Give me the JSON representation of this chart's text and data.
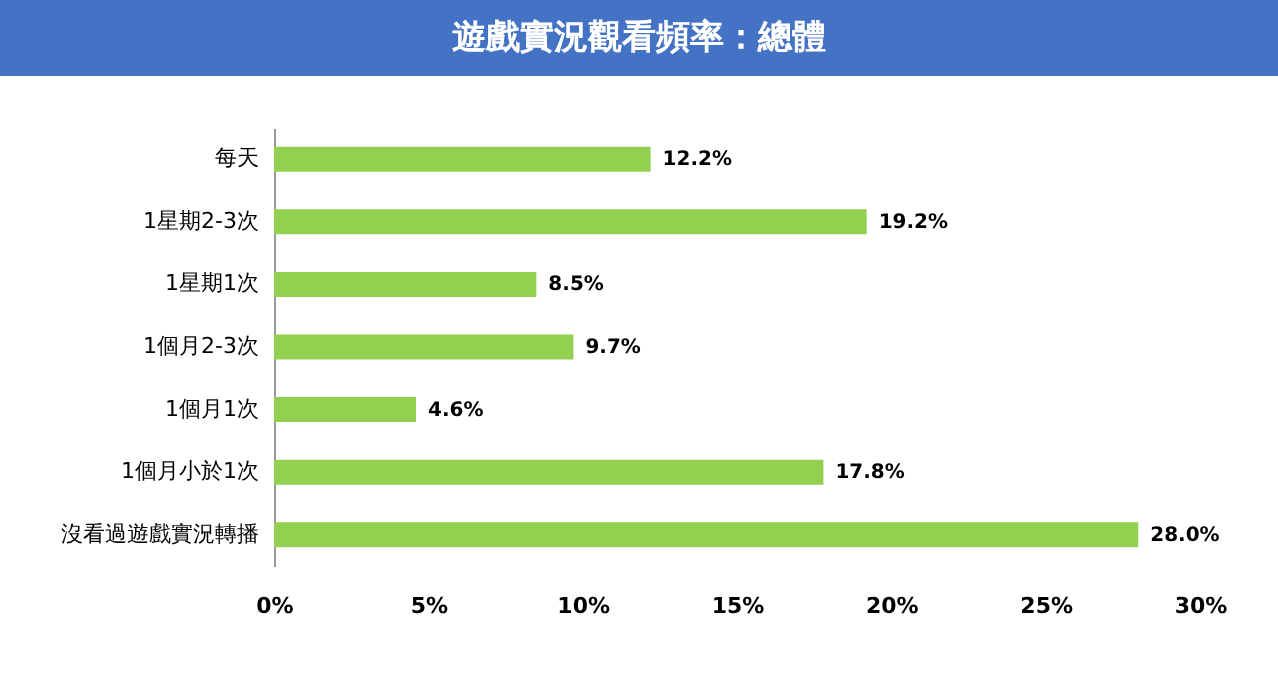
{
  "chart_data": {
    "type": "bar",
    "orientation": "horizontal",
    "title": "遊戲實況觀看頻率：總體",
    "categories": [
      "每天",
      "1星期2-3次",
      "1星期1次",
      "1個月2-3次",
      "1個月1次",
      "1個月小於1次",
      "沒看過遊戲實況轉播"
    ],
    "values": [
      12.2,
      19.2,
      8.5,
      9.7,
      4.6,
      17.8,
      28.0
    ],
    "value_labels": [
      "12.2%",
      "19.2%",
      "8.5%",
      "9.7%",
      "4.6%",
      "17.8%",
      "28.0%"
    ],
    "color": "#92d050",
    "xlim": [
      0,
      30
    ],
    "xticks": [
      {
        "value": 0,
        "label": "0%"
      },
      {
        "value": 5,
        "label": "5%"
      },
      {
        "value": 10,
        "label": "10%"
      },
      {
        "value": 15,
        "label": "15%"
      },
      {
        "value": 20,
        "label": "20%"
      },
      {
        "value": 25,
        "label": "25%"
      },
      {
        "value": 30,
        "label": "30%"
      }
    ]
  }
}
